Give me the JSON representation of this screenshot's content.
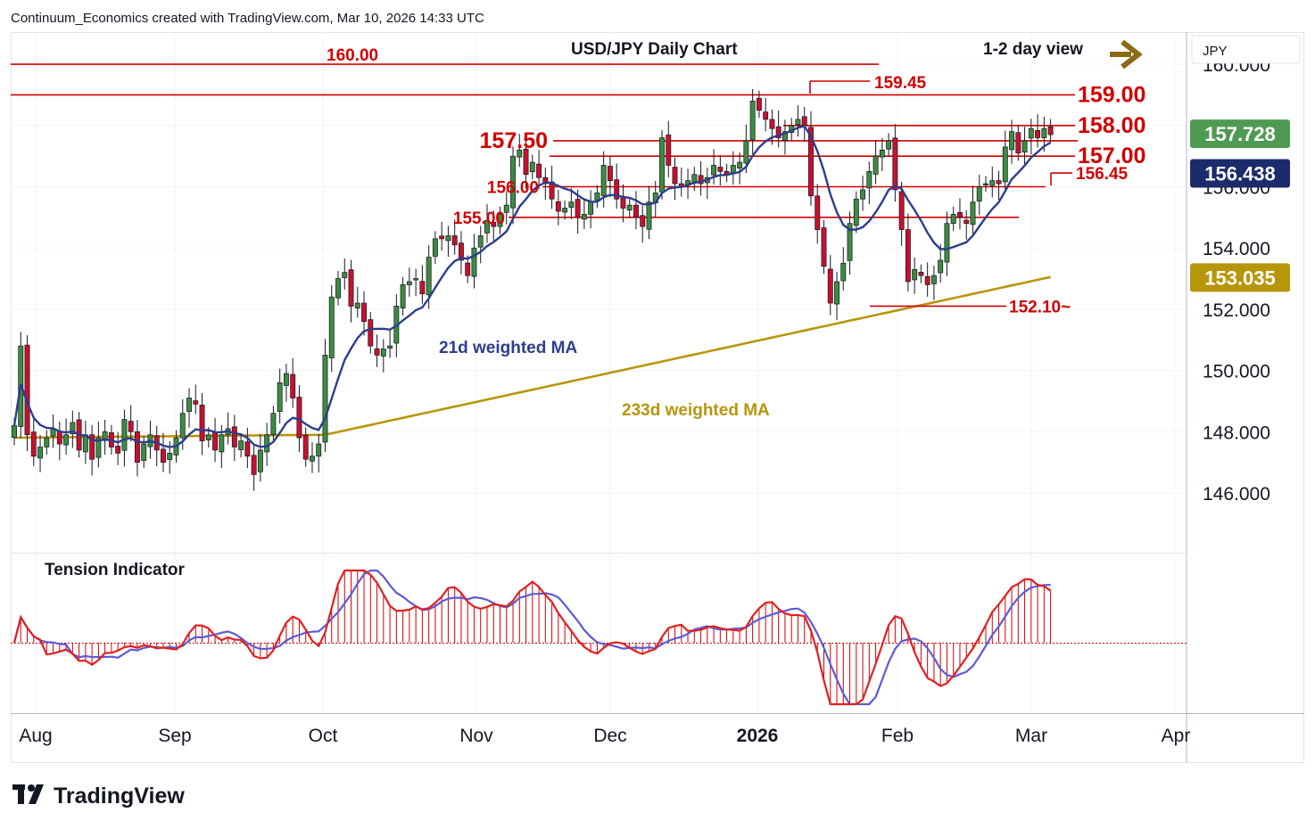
{
  "header": {
    "attribution": "Continuum_Economics created with TradingView.com, Mar 10, 2026 14:33 UTC",
    "chart_title": "USD/JPY Daily Chart",
    "view_label": "1-2 day view",
    "currency": "JPY"
  },
  "footer": {
    "brand": "TradingView"
  },
  "chart_data": {
    "type": "candlestick",
    "title": "USD/JPY Daily Chart",
    "y_axis": {
      "ticks": [
        "146.000",
        "148.000",
        "150.000",
        "152.000",
        "154.000",
        "156.000",
        "158.000",
        "160.000"
      ],
      "range": [
        144.2,
        160.7
      ]
    },
    "x_axis": {
      "ticks": [
        "Aug",
        "Sep",
        "Oct",
        "Nov",
        "Dec",
        "2026",
        "Feb",
        "Mar",
        "Apr"
      ]
    },
    "levels": [
      {
        "value": 160.0,
        "label": "160.00"
      },
      {
        "value": 159.45,
        "label": "159.45"
      },
      {
        "value": 159.0,
        "label": "159.00"
      },
      {
        "value": 158.0,
        "label": "158.00"
      },
      {
        "value": 157.5,
        "label": "157.50"
      },
      {
        "value": 157.0,
        "label": "157.00"
      },
      {
        "value": 156.45,
        "label": "156.45"
      },
      {
        "value": 156.0,
        "label": "156.00"
      },
      {
        "value": 155.0,
        "label": "155.00"
      },
      {
        "value": 152.1,
        "label": "152.10~"
      }
    ],
    "price_badges": [
      {
        "value": 157.728,
        "label": "157.728",
        "color": "#4f9a52"
      },
      {
        "value": 156.438,
        "label": "156.438",
        "color": "#1c2b6b"
      },
      {
        "value": 153.035,
        "label": "153.035",
        "color": "#b8960c"
      }
    ],
    "series": [
      {
        "name": "21d weighted MA",
        "color": "#2c3e8c"
      },
      {
        "name": "233d weighted MA",
        "color": "#b8960c"
      }
    ],
    "ohlc_close": [
      148.2,
      150.8,
      147.9,
      147.2,
      147.5,
      147.8,
      148.1,
      147.6,
      147.9,
      148.3,
      147.4,
      147.9,
      147.1,
      147.8,
      148.0,
      147.5,
      147.3,
      148.4,
      148.0,
      147.0,
      147.6,
      147.9,
      147.4,
      147.0,
      147.3,
      147.8,
      148.6,
      149.1,
      148.9,
      147.7,
      147.9,
      147.4,
      147.9,
      148.1,
      147.5,
      147.7,
      147.2,
      146.6,
      147.4,
      147.9,
      148.6,
      149.6,
      149.9,
      149.1,
      147.8,
      147.1,
      147.2,
      147.6,
      150.5,
      152.4,
      153.0,
      153.2,
      152.1,
      152.2,
      151.6,
      150.8,
      150.5,
      150.7,
      150.8,
      152.1,
      152.8,
      152.9,
      153.0,
      152.5,
      153.7,
      154.3,
      154.3,
      154.4,
      154.1,
      153.6,
      153.1,
      154.0,
      154.4,
      154.9,
      154.7,
      155.1,
      155.4,
      157.0,
      157.2,
      156.4,
      156.8,
      156.3,
      156.1,
      155.6,
      155.2,
      155.3,
      155.5,
      155.0,
      155.1,
      155.5,
      155.8,
      156.7,
      156.2,
      155.6,
      155.3,
      155.4,
      155.0,
      154.7,
      155.5,
      155.8,
      157.6,
      156.7,
      156.1,
      156.0,
      156.2,
      156.4,
      156.1,
      156.3,
      156.7,
      156.5,
      156.4,
      156.7,
      156.8,
      157.5,
      158.8,
      158.5,
      158.2,
      157.9,
      157.6,
      157.8,
      158.0,
      158.2,
      158.0,
      155.7,
      154.6,
      153.4,
      152.2,
      152.9,
      153.5,
      154.8,
      155.6,
      155.9,
      156.5,
      157.0,
      157.2,
      157.5,
      155.9,
      154.6,
      152.9,
      153.3,
      153.1,
      152.8,
      153.1,
      153.6,
      154.8,
      155.1,
      155.0,
      154.8,
      155.5,
      156.0,
      156.1,
      156.2,
      156.1,
      157.3,
      157.8,
      157.1,
      157.5,
      157.9,
      157.6,
      157.9,
      157.7
    ]
  }
}
